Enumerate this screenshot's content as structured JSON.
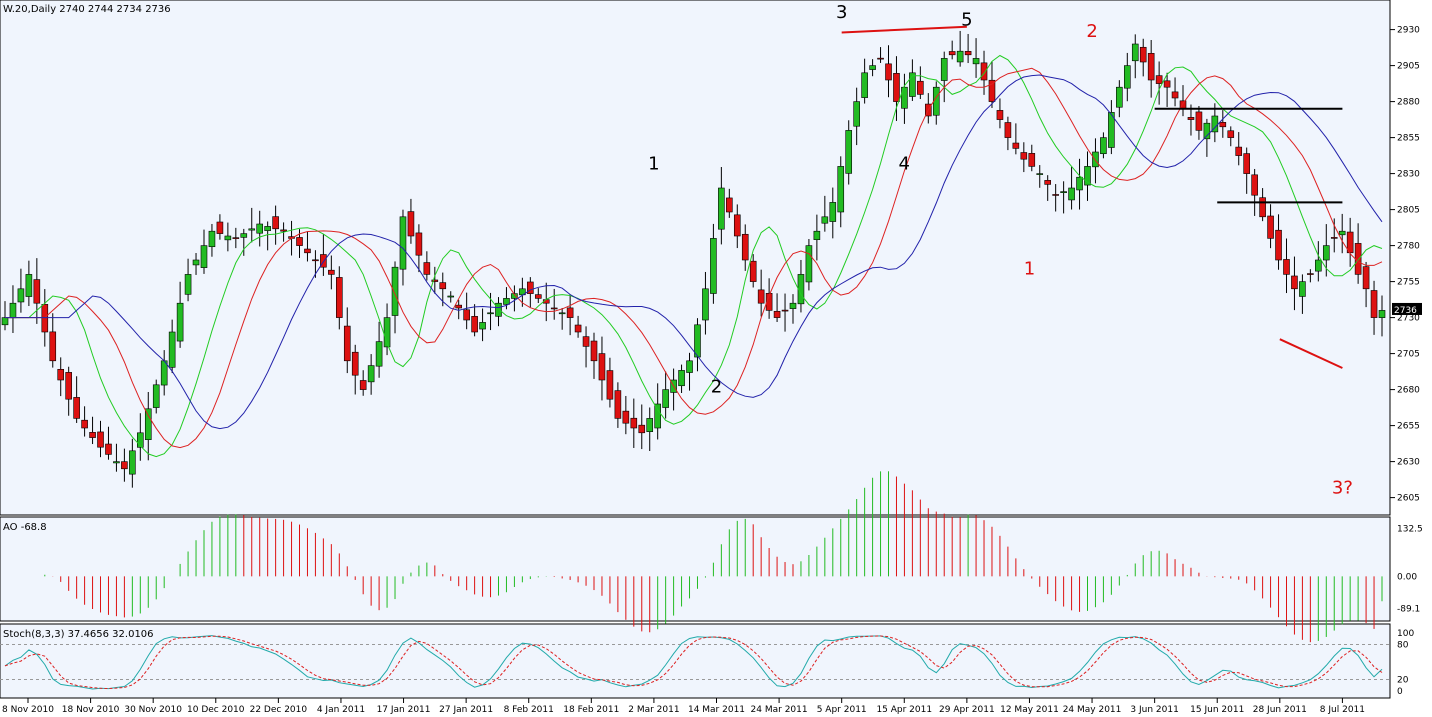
{
  "header": {
    "price_title": "W.20,Daily  2740 2744 2734 2736",
    "ao_title": "AO -68.8",
    "stoch_title": "Stoch(8,3,3) 37.4656 32.0106"
  },
  "colors": {
    "background": "#ffffff",
    "plot_bg": "#f0f5fd",
    "bull": "#22bb22",
    "bear": "#dd1111",
    "ma_fast": "#22cc22",
    "ma_mid": "#dd2222",
    "ma_slow": "#2222aa",
    "stoch_main": "#22aaaa",
    "stoch_signal": "#dd2222",
    "last_price_box": "#000000"
  },
  "annotations": [
    {
      "text": "1",
      "x": "2 Mar 2011",
      "y": 2833,
      "color": "#000000"
    },
    {
      "text": "2",
      "x": "14 Mar 2011",
      "y": 2678,
      "color": "#000000"
    },
    {
      "text": "3",
      "x": "5 Apr 2011",
      "y": 2938,
      "color": "#000000"
    },
    {
      "text": "4",
      "x": "15 Apr 2011",
      "y": 2833,
      "color": "#000000"
    },
    {
      "text": "5",
      "x": "29 Apr 2011",
      "y": 2933,
      "color": "#000000"
    },
    {
      "text": "1",
      "x": "12 May 2011",
      "y": 2760,
      "color": "#dd1111"
    },
    {
      "text": "2",
      "x": "24 May 2011",
      "y": 2925,
      "color": "#dd1111"
    },
    {
      "text": "3?",
      "x": "8 Jul 2011",
      "y": 2608,
      "color": "#dd1111"
    }
  ],
  "chart_data": [
    {
      "type": "candlestick",
      "panel": "price",
      "ylim": [
        2595,
        2945
      ],
      "y_ticks": [
        2605,
        2630,
        2655,
        2680,
        2705,
        2730,
        2755,
        2780,
        2805,
        2830,
        2855,
        2880,
        2905,
        2930
      ],
      "last_price": 2736,
      "x_tick_labels": [
        "8 Nov 2010",
        "18 Nov 2010",
        "30 Nov 2010",
        "10 Dec 2010",
        "22 Dec 2010",
        "4 Jan 2011",
        "17 Jan 2011",
        "27 Jan 2011",
        "8 Feb 2011",
        "18 Feb 2011",
        "2 Mar 2011",
        "14 Mar 2011",
        "24 Mar 2011",
        "5 Apr 2011",
        "15 Apr 2011",
        "29 Apr 2011",
        "12 May 2011",
        "24 May 2011",
        "3 Jun 2011",
        "15 Jun 2011",
        "28 Jun 2011",
        "8 Jul 2011"
      ],
      "close_anchors": [
        [
          0,
          2730
        ],
        [
          3,
          2760
        ],
        [
          6,
          2700
        ],
        [
          9,
          2660
        ],
        [
          12,
          2640
        ],
        [
          15,
          2625
        ],
        [
          17,
          2650
        ],
        [
          20,
          2700
        ],
        [
          23,
          2760
        ],
        [
          26,
          2790
        ],
        [
          29,
          2785
        ],
        [
          32,
          2795
        ],
        [
          35,
          2790
        ],
        [
          38,
          2775
        ],
        [
          41,
          2760
        ],
        [
          43,
          2700
        ],
        [
          45,
          2680
        ],
        [
          48,
          2730
        ],
        [
          50,
          2800
        ],
        [
          53,
          2760
        ],
        [
          56,
          2745
        ],
        [
          59,
          2720
        ],
        [
          62,
          2740
        ],
        [
          65,
          2750
        ],
        [
          68,
          2740
        ],
        [
          71,
          2730
        ],
        [
          74,
          2700
        ],
        [
          77,
          2660
        ],
        [
          80,
          2650
        ],
        [
          83,
          2680
        ],
        [
          86,
          2700
        ],
        [
          88,
          2750
        ],
        [
          90,
          2820
        ],
        [
          93,
          2770
        ],
        [
          95,
          2740
        ],
        [
          97,
          2730
        ],
        [
          99,
          2740
        ],
        [
          101,
          2780
        ],
        [
          104,
          2810
        ],
        [
          106,
          2860
        ],
        [
          108,
          2900
        ],
        [
          110,
          2910
        ],
        [
          112,
          2880
        ],
        [
          114,
          2900
        ],
        [
          116,
          2870
        ],
        [
          118,
          2910
        ],
        [
          120,
          2915
        ],
        [
          122,
          2910
        ],
        [
          124,
          2880
        ],
        [
          126,
          2855
        ],
        [
          128,
          2840
        ],
        [
          130,
          2830
        ],
        [
          132,
          2815
        ],
        [
          134,
          2820
        ],
        [
          136,
          2835
        ],
        [
          138,
          2855
        ],
        [
          140,
          2890
        ],
        [
          142,
          2920
        ],
        [
          144,
          2895
        ],
        [
          146,
          2890
        ],
        [
          148,
          2875
        ],
        [
          150,
          2860
        ],
        [
          152,
          2870
        ],
        [
          154,
          2855
        ],
        [
          156,
          2830
        ],
        [
          158,
          2800
        ],
        [
          160,
          2770
        ],
        [
          162,
          2750
        ],
        [
          164,
          2760
        ],
        [
          166,
          2780
        ],
        [
          168,
          2790
        ],
        [
          170,
          2760
        ],
        [
          171,
          2750
        ],
        [
          172,
          2730
        ],
        [
          173,
          2735
        ]
      ],
      "series": [
        {
          "name": "",
          "line": "ma_fast",
          "values": []
        },
        {
          "name": "",
          "line": "ma_mid",
          "values": []
        },
        {
          "name": "",
          "line": "ma_slow",
          "values": []
        }
      ],
      "trend_lines": [
        {
          "from": [
            "5 Apr 2011",
            2928
          ],
          "to": [
            "29 Apr 2011",
            2932
          ],
          "color": "#dd1111"
        },
        {
          "from": [
            "3 Jun 2011",
            2875
          ],
          "to": [
            "8 Jul 2011",
            2875
          ],
          "color": "#000000"
        },
        {
          "from": [
            "15 Jun 2011",
            2810
          ],
          "to": [
            "8 Jul 2011",
            2810
          ],
          "color": "#000000"
        },
        {
          "from": [
            "28 Jun 2011",
            2715
          ],
          "to": [
            "8 Jul 2011",
            2695
          ],
          "color": "#dd1111"
        }
      ]
    },
    {
      "type": "bar",
      "panel": "ao",
      "ylim": [
        -115,
        150
      ],
      "y_ticks": [
        132.5,
        0.0,
        -89.1
      ],
      "last_value": -68.8
    },
    {
      "type": "line",
      "panel": "stoch",
      "ylim": [
        -5,
        105
      ],
      "y_ticks": [
        100,
        80,
        20,
        0
      ],
      "levels": [
        80,
        20
      ],
      "series": [
        {
          "name": "",
          "line": "stoch_main",
          "last": 37.4656
        },
        {
          "name": "",
          "line": "stoch_signal",
          "last": 32.0106
        }
      ]
    }
  ]
}
